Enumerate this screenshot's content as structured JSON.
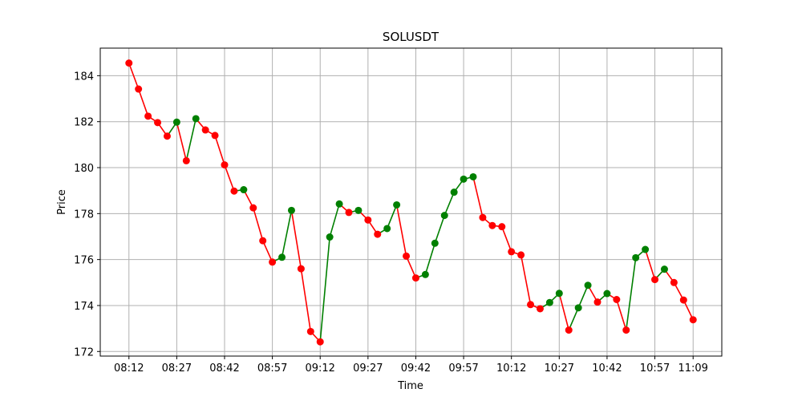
{
  "chart_data": {
    "type": "line",
    "title": "SOLUSDT",
    "xlabel": "Time",
    "ylabel": "Price",
    "grid": true,
    "x_start_minutes": 492,
    "x_step_minutes": 3,
    "x_ticks": [
      "08:12",
      "08:27",
      "08:42",
      "08:57",
      "09:12",
      "09:27",
      "09:42",
      "09:57",
      "10:12",
      "10:27",
      "10:42",
      "10:57",
      "11:09"
    ],
    "x_tick_minutes": [
      492,
      507,
      522,
      537,
      552,
      567,
      582,
      597,
      612,
      627,
      642,
      657,
      669
    ],
    "xlim_minutes": [
      483,
      678
    ],
    "ylim": [
      171.8,
      185.2
    ],
    "y_ticks": [
      "172",
      "174",
      "176",
      "178",
      "180",
      "182",
      "184"
    ],
    "y_tick_values": [
      172,
      174,
      176,
      178,
      180,
      182,
      184
    ],
    "up_color": "#008000",
    "down_color": "#ff0000",
    "values": [
      184.55,
      183.42,
      182.24,
      181.96,
      181.37,
      181.98,
      180.3,
      182.13,
      181.64,
      181.4,
      180.12,
      178.98,
      179.04,
      178.25,
      176.82,
      175.89,
      176.1,
      178.14,
      175.6,
      172.87,
      172.42,
      176.98,
      178.42,
      178.05,
      178.14,
      177.72,
      177.1,
      177.35,
      178.38,
      176.15,
      175.2,
      175.35,
      176.71,
      177.92,
      178.93,
      179.5,
      179.6,
      177.83,
      177.48,
      177.43,
      176.34,
      176.2,
      174.04,
      173.86,
      174.13,
      174.53,
      172.93,
      173.9,
      174.88,
      174.15,
      174.52,
      174.26,
      172.93,
      176.08,
      176.44,
      175.13,
      175.58,
      175.0,
      174.24,
      173.38
    ]
  }
}
